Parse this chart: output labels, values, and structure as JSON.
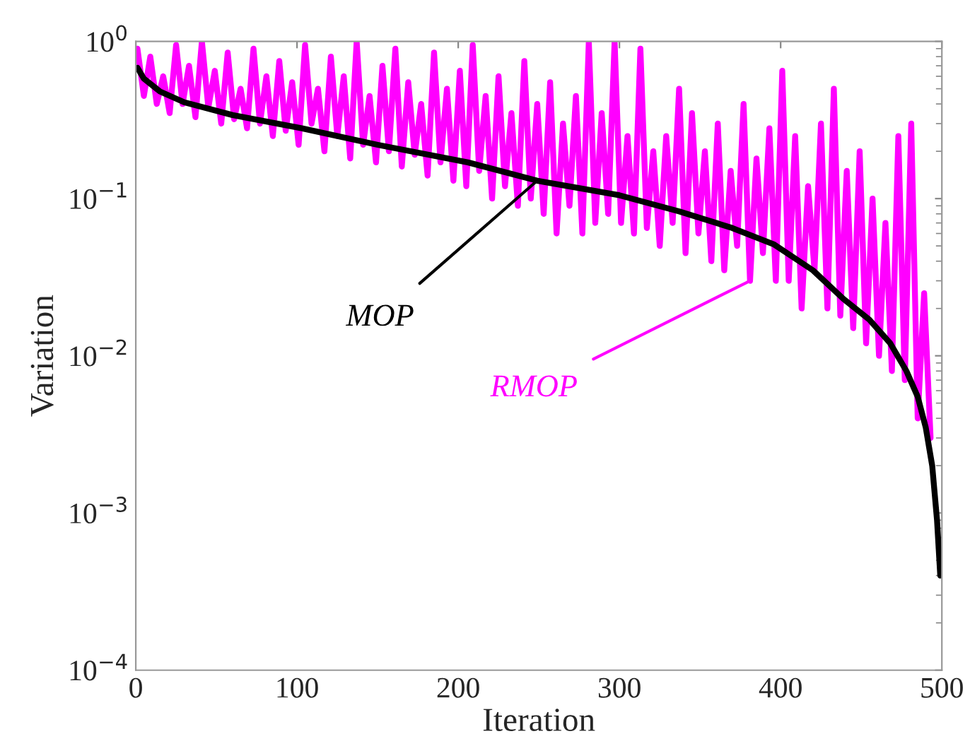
{
  "chart_data": {
    "type": "line",
    "xlabel": "Iteration",
    "ylabel": "Variation",
    "log": "y",
    "grid": false,
    "legend": false,
    "marker": "none",
    "line_style": "solid",
    "xlim": [
      0,
      500
    ],
    "xticks": [
      0,
      100,
      200,
      300,
      400,
      500
    ],
    "ylim": [
      0.0001,
      1
    ],
    "yticks": [
      {
        "value": 0.0001,
        "label": "10$^{−4}$"
      },
      {
        "value": 0.001,
        "label": "10$^{−3}$"
      },
      {
        "value": 0.01,
        "label": "10$^{−2}$"
      },
      {
        "value": 0.1,
        "label": "10$^{−1}$"
      },
      {
        "value": 1,
        "label": "10$^{0}$"
      }
    ],
    "series": [
      {
        "name": "MOP",
        "color": "#000000",
        "x": [
          1,
          5,
          15,
          30,
          60,
          103,
          150,
          206,
          249,
          300,
          337,
          370,
          396,
          420,
          439,
          455,
          468,
          478,
          485,
          490,
          494,
          497,
          499
        ],
        "values": [
          0.68,
          0.58,
          0.48,
          0.41,
          0.34,
          0.28,
          0.22,
          0.17,
          0.13,
          0.105,
          0.083,
          0.065,
          0.051,
          0.035,
          0.023,
          0.017,
          0.012,
          0.008,
          0.0055,
          0.0035,
          0.002,
          0.0009,
          0.0004
        ]
      },
      {
        "name": "RMOP",
        "color": "#ff00ff",
        "x": [
          1,
          5,
          9,
          13,
          17,
          21,
          25,
          29,
          33,
          37,
          41,
          45,
          49,
          53,
          57,
          61,
          65,
          69,
          73,
          77,
          81,
          85,
          89,
          93,
          97,
          101,
          105,
          109,
          113,
          117,
          121,
          125,
          129,
          133,
          137,
          141,
          145,
          149,
          153,
          157,
          161,
          165,
          169,
          173,
          177,
          181,
          185,
          189,
          193,
          197,
          201,
          205,
          209,
          213,
          217,
          221,
          225,
          229,
          233,
          237,
          241,
          245,
          249,
          253,
          257,
          261,
          265,
          269,
          273,
          277,
          281,
          285,
          289,
          293,
          297,
          301,
          305,
          309,
          313,
          317,
          321,
          325,
          329,
          333,
          337,
          341,
          345,
          349,
          353,
          357,
          361,
          365,
          369,
          373,
          377,
          381,
          385,
          389,
          393,
          397,
          401,
          405,
          409,
          413,
          417,
          421,
          425,
          429,
          433,
          437,
          441,
          445,
          449,
          453,
          457,
          461,
          465,
          469,
          473,
          477,
          481,
          485,
          489,
          493
        ],
        "values": [
          0.9,
          0.45,
          0.8,
          0.4,
          0.6,
          0.35,
          0.95,
          0.4,
          0.7,
          0.33,
          1.0,
          0.38,
          0.65,
          0.3,
          0.85,
          0.32,
          0.5,
          0.28,
          0.9,
          0.3,
          0.6,
          0.25,
          0.75,
          0.27,
          0.55,
          0.22,
          0.95,
          0.3,
          0.5,
          0.2,
          0.8,
          0.25,
          0.6,
          0.18,
          1.0,
          0.22,
          0.45,
          0.17,
          0.7,
          0.2,
          0.9,
          0.16,
          0.55,
          0.19,
          0.4,
          0.14,
          0.85,
          0.17,
          0.5,
          0.13,
          0.65,
          0.12,
          0.95,
          0.15,
          0.45,
          0.1,
          0.6,
          0.12,
          0.35,
          0.09,
          0.75,
          0.1,
          0.4,
          0.08,
          0.55,
          0.06,
          0.3,
          0.09,
          0.45,
          0.06,
          1.0,
          0.07,
          0.35,
          0.08,
          1.0,
          0.07,
          0.25,
          0.06,
          0.9,
          0.065,
          0.2,
          0.05,
          0.25,
          0.07,
          0.5,
          0.045,
          0.35,
          0.06,
          0.2,
          0.04,
          0.3,
          0.035,
          0.15,
          0.05,
          0.4,
          0.03,
          0.18,
          0.045,
          0.28,
          0.03,
          0.65,
          0.03,
          0.25,
          0.02,
          0.12,
          0.035,
          0.3,
          0.02,
          0.5,
          0.018,
          0.15,
          0.015,
          0.2,
          0.012,
          0.1,
          0.01,
          0.07,
          0.008,
          0.25,
          0.007,
          0.3,
          0.004,
          0.025,
          0.003
        ]
      }
    ]
  }
}
